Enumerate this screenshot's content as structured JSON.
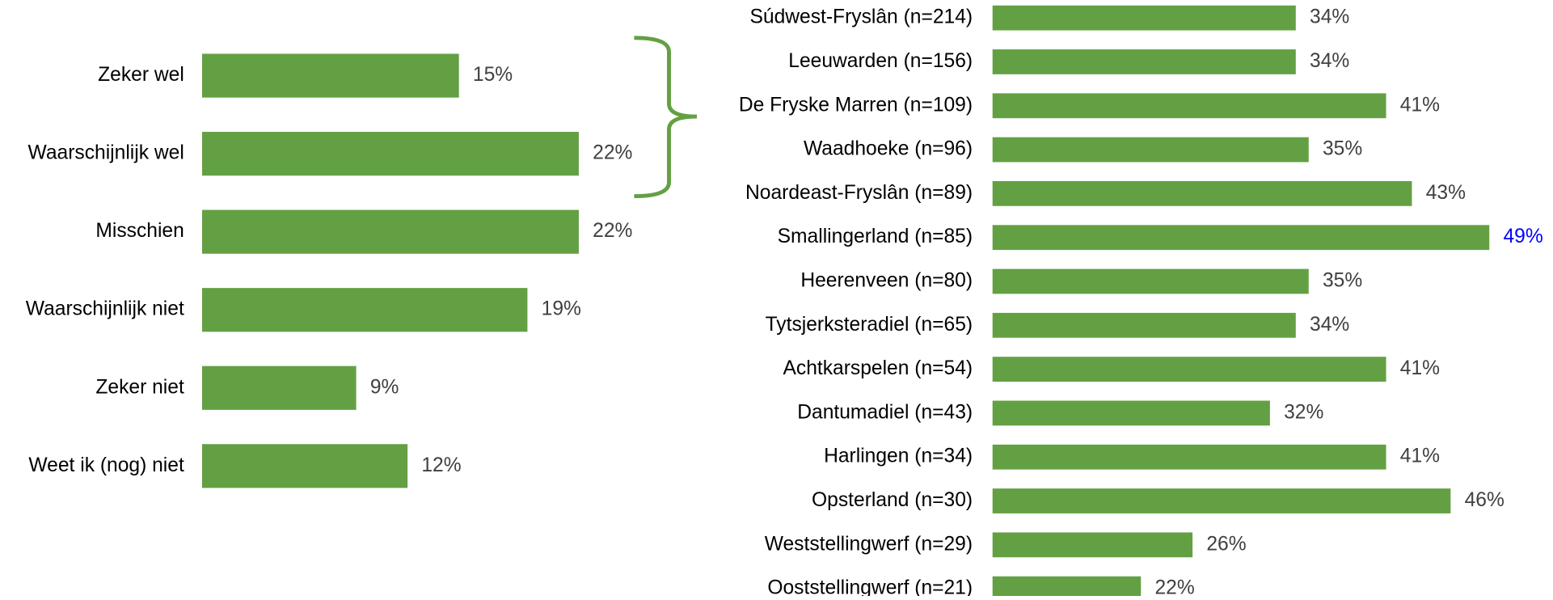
{
  "chart_data": [
    {
      "type": "bar",
      "orientation": "horizontal",
      "categories": [
        "Zeker wel",
        "Waarschijnlijk wel",
        "Misschien",
        "Waarschijnlijk niet",
        "Zeker niet",
        "Weet ik (nog) niet"
      ],
      "values": [
        15,
        22,
        22,
        19,
        9,
        12
      ],
      "value_labels": [
        "15%",
        "22%",
        "22%",
        "19%",
        "9%",
        "12%"
      ],
      "color": "#63a043",
      "xlim": [
        0,
        25
      ]
    },
    {
      "type": "bar",
      "orientation": "horizontal",
      "categories": [
        "Súdwest-Fryslân (n=214)",
        "Leeuwarden (n=156)",
        "De Fryske Marren (n=109)",
        "Waadhoeke (n=96)",
        "Noardeast-Fryslân (n=89)",
        "Smallingerland (n=85)",
        "Heerenveen (n=80)",
        "Tytsjerksteradiel (n=65)",
        "Achtkarspelen (n=54)",
        "Dantumadiel (n=43)",
        "Harlingen (n=34)",
        "Opsterland (n=30)",
        "Weststellingwerf (n=29)",
        "Ooststellingwerf (n=21)"
      ],
      "values": [
        34,
        34,
        41,
        35,
        43,
        49,
        35,
        34,
        41,
        32,
        41,
        46,
        26,
        22
      ],
      "value_labels": [
        "34%",
        "34%",
        "41%",
        "35%",
        "43%",
        "49%",
        "35%",
        "34%",
        "41%",
        "32%",
        "41%",
        "46%",
        "26%",
        "22%"
      ],
      "color": "#63a043",
      "xlim": [
        10.5,
        50
      ],
      "highlight_index": 5,
      "highlight_color": "#0000ff"
    }
  ]
}
